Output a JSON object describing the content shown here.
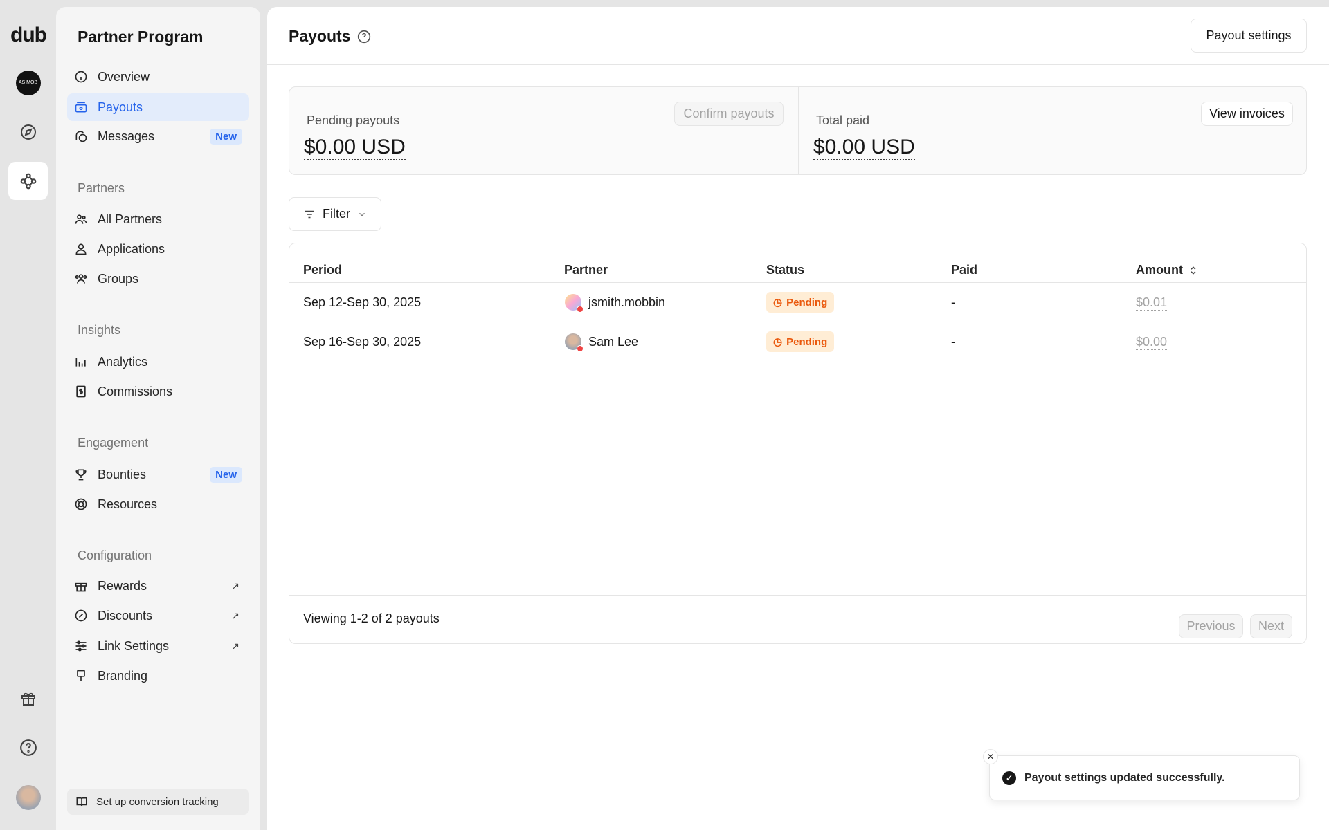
{
  "rail": {
    "logo": "dub",
    "workspace_avatar": "AS MOB",
    "icons": [
      "workspace-avatar",
      "compass-icon",
      "partners-network-icon",
      "gift-icon",
      "help-icon",
      "user-avatar"
    ]
  },
  "sidebar": {
    "title": "Partner Program",
    "items": [
      {
        "label": "Overview",
        "icon": "gauge-icon"
      },
      {
        "label": "Payouts",
        "icon": "money-icon",
        "active": true
      },
      {
        "label": "Messages",
        "icon": "messages-icon",
        "badge": "New"
      }
    ],
    "sections": [
      {
        "title": "Partners",
        "items": [
          {
            "label": "All Partners"
          },
          {
            "label": "Applications"
          },
          {
            "label": "Groups"
          }
        ]
      },
      {
        "title": "Insights",
        "items": [
          {
            "label": "Analytics"
          },
          {
            "label": "Commissions"
          }
        ]
      },
      {
        "title": "Engagement",
        "items": [
          {
            "label": "Bounties",
            "badge": "New"
          },
          {
            "label": "Resources"
          }
        ]
      },
      {
        "title": "Configuration",
        "items": [
          {
            "label": "Rewards",
            "external": true
          },
          {
            "label": "Discounts",
            "external": true
          },
          {
            "label": "Link Settings",
            "external": true
          },
          {
            "label": "Branding"
          }
        ]
      }
    ],
    "footer_button": "Set up conversion tracking"
  },
  "header": {
    "title": "Payouts",
    "settings_button": "Payout settings"
  },
  "stats": {
    "pending": {
      "label": "Pending payouts",
      "value": "$0.00 USD",
      "button": "Confirm payouts"
    },
    "total": {
      "label": "Total paid",
      "value": "$0.00 USD",
      "button": "View invoices"
    }
  },
  "filter": {
    "label": "Filter"
  },
  "table": {
    "columns": [
      "Period",
      "Partner",
      "Status",
      "Paid",
      "Amount"
    ],
    "rows": [
      {
        "period": "Sep 12-Sep 30, 2025",
        "partner": "jsmith.mobbin",
        "status": "Pending",
        "paid": "-",
        "amount": "$0.01"
      },
      {
        "period": "Sep 16-Sep 30, 2025",
        "partner": "Sam Lee",
        "status": "Pending",
        "paid": "-",
        "amount": "$0.00"
      }
    ],
    "footer": "Viewing 1-2 of 2 payouts",
    "prev": "Previous",
    "next": "Next"
  },
  "toast": {
    "message": "Payout settings updated successfully."
  },
  "colors": {
    "accent": "#2563eb",
    "pending_bg": "#ffedd5",
    "pending_text": "#ea580c"
  }
}
